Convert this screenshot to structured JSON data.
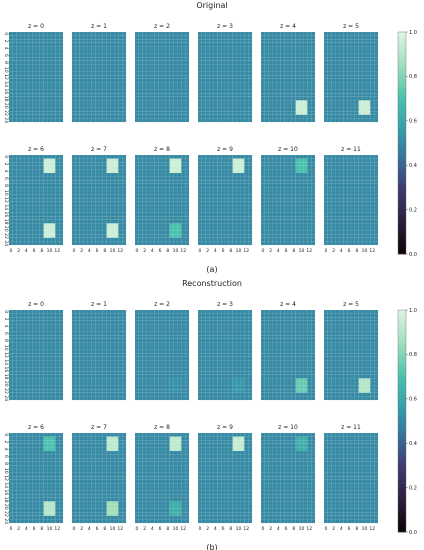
{
  "chart_data": [
    {
      "type": "heatmap",
      "title": "Original",
      "caption": "(a)",
      "panel_titles": [
        "z = 0",
        "z = 1",
        "z = 2",
        "z = 3",
        "z = 4",
        "z = 5",
        "z = 6",
        "z = 7",
        "z = 8",
        "z = 9",
        "z = 10",
        "z = 11"
      ],
      "grid_shape": [
        25,
        14
      ],
      "x_ticks": [
        "0",
        "2",
        "4",
        "6",
        "8",
        "10",
        "12"
      ],
      "y_ticks": [
        "0",
        "2",
        "4",
        "6",
        "8",
        "10",
        "12",
        "14",
        "16",
        "18",
        "20",
        "22",
        "24"
      ],
      "background_value": 0.5,
      "colorbar": {
        "range": [
          0.0,
          1.0
        ],
        "ticks": [
          "0.0",
          "0.2",
          "0.4",
          "0.6",
          "0.8",
          "1.0"
        ],
        "colormap": "mako"
      },
      "panels": [
        {
          "z": 0,
          "hotspots": []
        },
        {
          "z": 1,
          "hotspots": []
        },
        {
          "z": 2,
          "hotspots": []
        },
        {
          "z": 3,
          "hotspots": []
        },
        {
          "z": 4,
          "hotspots": [
            {
              "cols": [
                9,
                11
              ],
              "rows": [
                19,
                22
              ],
              "value": 0.95
            }
          ]
        },
        {
          "z": 5,
          "hotspots": [
            {
              "cols": [
                9,
                11
              ],
              "rows": [
                19,
                22
              ],
              "value": 0.95
            }
          ]
        },
        {
          "z": 6,
          "hotspots": [
            {
              "cols": [
                9,
                11
              ],
              "rows": [
                1,
                4
              ],
              "value": 0.95
            },
            {
              "cols": [
                9,
                11
              ],
              "rows": [
                19,
                22
              ],
              "value": 0.95
            }
          ]
        },
        {
          "z": 7,
          "hotspots": [
            {
              "cols": [
                9,
                11
              ],
              "rows": [
                1,
                4
              ],
              "value": 0.95
            },
            {
              "cols": [
                9,
                11
              ],
              "rows": [
                19,
                22
              ],
              "value": 0.95
            }
          ]
        },
        {
          "z": 8,
          "hotspots": [
            {
              "cols": [
                9,
                11
              ],
              "rows": [
                1,
                4
              ],
              "value": 0.95
            },
            {
              "cols": [
                9,
                11
              ],
              "rows": [
                19,
                22
              ],
              "value": 0.7
            }
          ]
        },
        {
          "z": 9,
          "hotspots": [
            {
              "cols": [
                9,
                11
              ],
              "rows": [
                1,
                4
              ],
              "value": 0.95
            }
          ]
        },
        {
          "z": 10,
          "hotspots": [
            {
              "cols": [
                9,
                11
              ],
              "rows": [
                1,
                4
              ],
              "value": 0.7
            }
          ]
        },
        {
          "z": 11,
          "hotspots": []
        }
      ]
    },
    {
      "type": "heatmap",
      "title": "Reconstruction",
      "caption": "(b)",
      "panel_titles": [
        "z = 0",
        "z = 1",
        "z = 2",
        "z = 3",
        "z = 4",
        "z = 5",
        "z = 6",
        "z = 7",
        "z = 8",
        "z = 9",
        "z = 10",
        "z = 11"
      ],
      "grid_shape": [
        25,
        14
      ],
      "x_ticks": [
        "0",
        "2",
        "4",
        "6",
        "8",
        "10",
        "12"
      ],
      "y_ticks": [
        "0",
        "2",
        "4",
        "6",
        "8",
        "10",
        "12",
        "14",
        "16",
        "18",
        "20",
        "22",
        "24"
      ],
      "background_value": 0.5,
      "colorbar": {
        "range": [
          0.0,
          1.0
        ],
        "ticks": [
          "0.0",
          "0.2",
          "0.4",
          "0.6",
          "0.8",
          "1.0"
        ],
        "colormap": "mako"
      },
      "panels": [
        {
          "z": 0,
          "hotspots": []
        },
        {
          "z": 1,
          "hotspots": []
        },
        {
          "z": 2,
          "hotspots": [
            {
              "cols": [
                9,
                11
              ],
              "rows": [
                19,
                22
              ],
              "value": 0.52
            }
          ]
        },
        {
          "z": 3,
          "hotspots": [
            {
              "cols": [
                9,
                11
              ],
              "rows": [
                19,
                22
              ],
              "value": 0.54
            }
          ]
        },
        {
          "z": 4,
          "hotspots": [
            {
              "cols": [
                9,
                11
              ],
              "rows": [
                19,
                22
              ],
              "value": 0.75
            }
          ]
        },
        {
          "z": 5,
          "hotspots": [
            {
              "cols": [
                9,
                11
              ],
              "rows": [
                19,
                22
              ],
              "value": 0.9
            }
          ]
        },
        {
          "z": 6,
          "hotspots": [
            {
              "cols": [
                9,
                11
              ],
              "rows": [
                1,
                4
              ],
              "value": 0.7
            },
            {
              "cols": [
                9,
                11
              ],
              "rows": [
                19,
                22
              ],
              "value": 0.9
            }
          ]
        },
        {
          "z": 7,
          "hotspots": [
            {
              "cols": [
                9,
                11
              ],
              "rows": [
                1,
                4
              ],
              "value": 0.92
            },
            {
              "cols": [
                9,
                11
              ],
              "rows": [
                19,
                22
              ],
              "value": 0.85
            }
          ]
        },
        {
          "z": 8,
          "hotspots": [
            {
              "cols": [
                9,
                11
              ],
              "rows": [
                1,
                4
              ],
              "value": 0.92
            },
            {
              "cols": [
                9,
                11
              ],
              "rows": [
                19,
                22
              ],
              "value": 0.62
            }
          ]
        },
        {
          "z": 9,
          "hotspots": [
            {
              "cols": [
                9,
                11
              ],
              "rows": [
                1,
                4
              ],
              "value": 0.93
            }
          ]
        },
        {
          "z": 10,
          "hotspots": [
            {
              "cols": [
                9,
                11
              ],
              "rows": [
                1,
                4
              ],
              "value": 0.62
            }
          ]
        },
        {
          "z": 11,
          "hotspots": []
        }
      ]
    }
  ]
}
